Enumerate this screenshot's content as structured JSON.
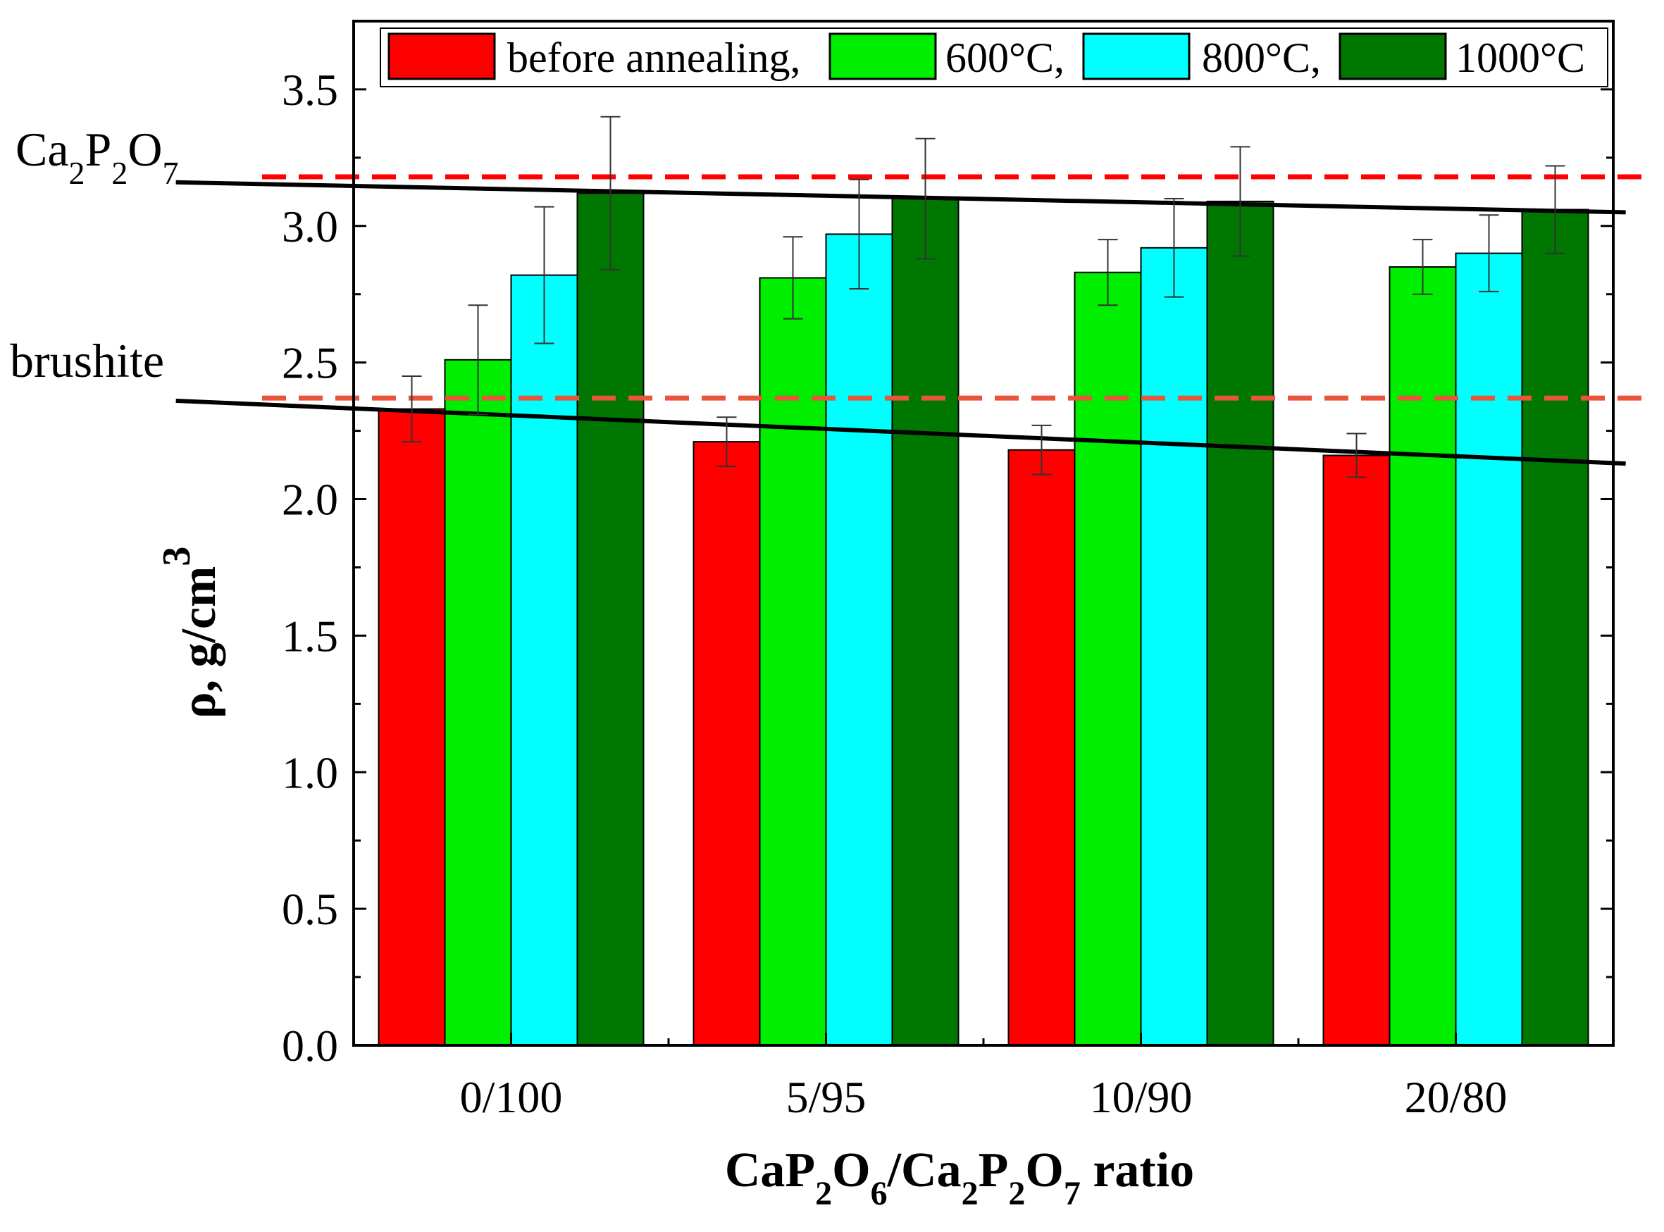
{
  "chart_data": {
    "type": "bar",
    "categories": [
      "0/100",
      "5/95",
      "10/90",
      "20/80"
    ],
    "series": [
      {
        "name": "before annealing,",
        "color": "#ff0000",
        "values": [
          2.33,
          2.21,
          2.18,
          2.16
        ],
        "errors": [
          0.12,
          0.09,
          0.09,
          0.08
        ]
      },
      {
        "name": "600°C,",
        "color": "#00ee00",
        "values": [
          2.51,
          2.81,
          2.83,
          2.85
        ],
        "errors": [
          0.2,
          0.15,
          0.12,
          0.1
        ]
      },
      {
        "name": "800°C,",
        "color": "#00ffff",
        "values": [
          2.82,
          2.97,
          2.92,
          2.9
        ],
        "errors": [
          0.25,
          0.2,
          0.18,
          0.14
        ]
      },
      {
        "name": "1000°C",
        "color": "#007700",
        "values": [
          3.12,
          3.1,
          3.09,
          3.06
        ],
        "errors": [
          0.28,
          0.22,
          0.2,
          0.16
        ]
      }
    ],
    "ylim": [
      0.0,
      3.75
    ],
    "yticks": [
      "0.0",
      "0.5",
      "1.0",
      "1.5",
      "2.0",
      "2.5",
      "3.0",
      "3.5"
    ],
    "ylabel": {
      "main": "ρ, g/cm",
      "sup": "3"
    },
    "xlabel": {
      "p1": "CaP",
      "s1": "2",
      "p2": "O",
      "s2": "6",
      "p3": "/Ca",
      "s3": "2",
      "p4": "P",
      "s4": "2",
      "p5": "O",
      "s5": "7",
      "p6": " ratio"
    },
    "reference_lines": [
      {
        "label": "Ca2P2O7",
        "value": 3.18,
        "color": "#ff0000",
        "style": "dashed"
      },
      {
        "label": "brushite",
        "value": 2.37,
        "color": "#e8553a",
        "style": "dashed"
      }
    ],
    "trend_lines": [
      {
        "name": "upper",
        "x_start": 0.45,
        "y_start": 3.16,
        "x_end": 4.45,
        "y_end": 3.05
      },
      {
        "name": "lower",
        "x_start": 0.45,
        "y_start": 2.36,
        "x_end": 4.45,
        "y_end": 2.13
      }
    ],
    "annotations": {
      "ca2p2o7": {
        "p1": "Ca",
        "s1": "2",
        "p2": "P",
        "s2": "2",
        "p3": "O",
        "s3": "7"
      },
      "brushite": "brushite"
    },
    "legend_position": "top-right",
    "grid": false
  }
}
